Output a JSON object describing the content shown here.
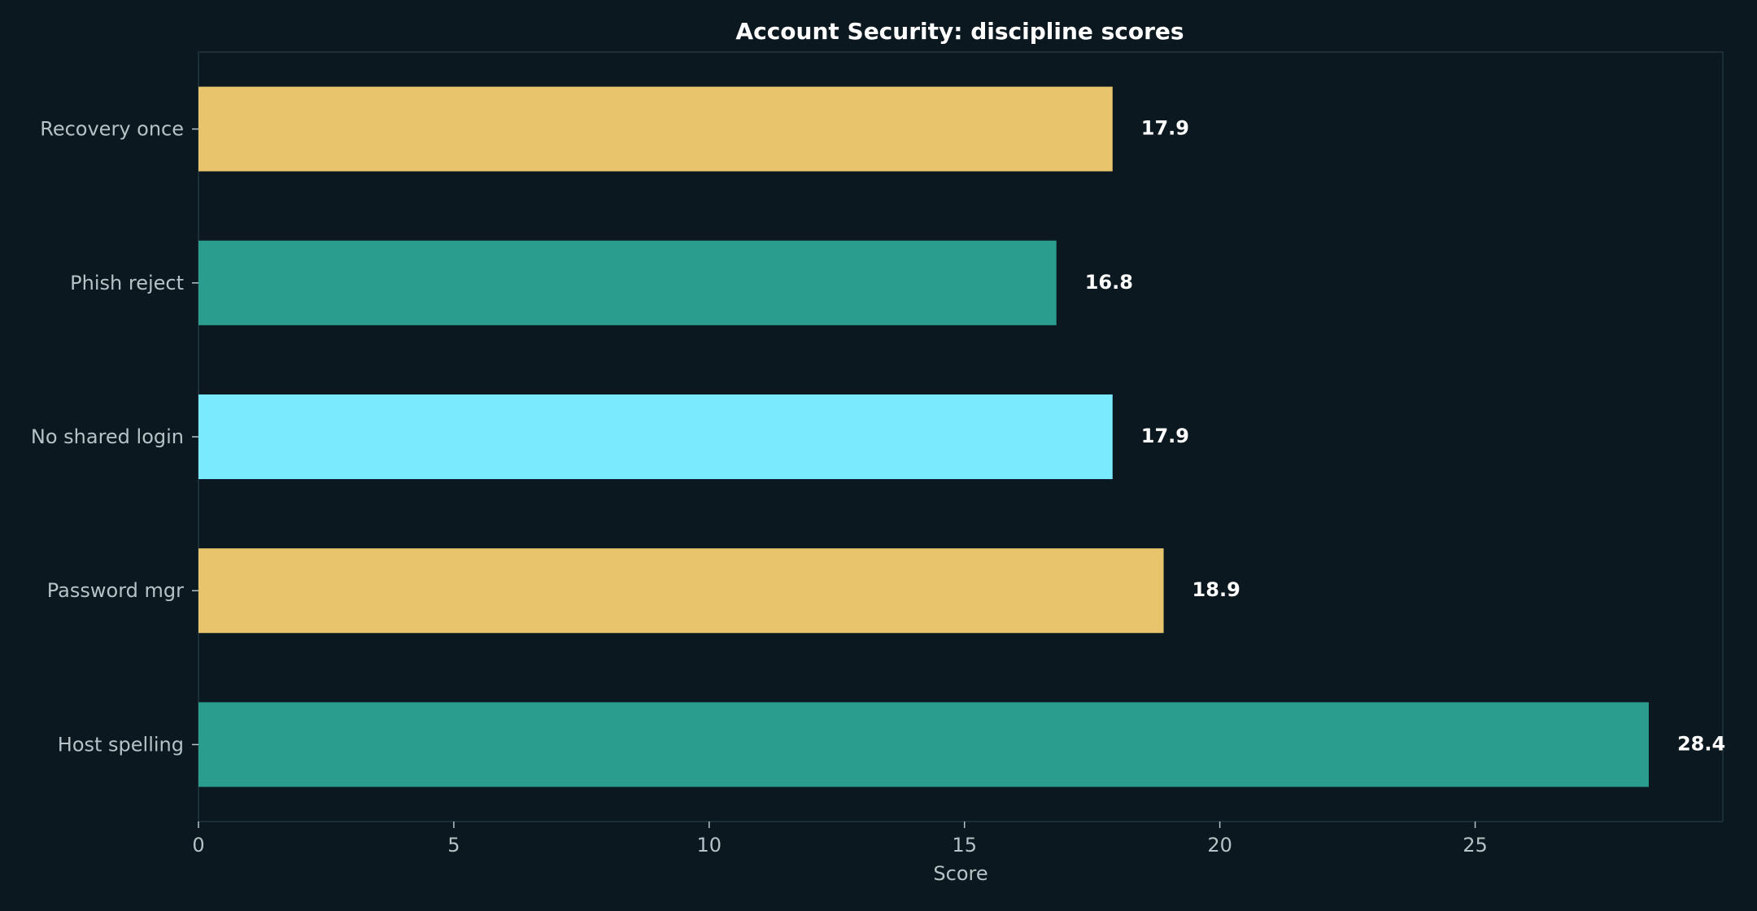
{
  "chart_data": {
    "type": "bar",
    "orientation": "horizontal",
    "title": "Account Security: discipline scores",
    "xlabel": "Score",
    "ylabel": "",
    "categories": [
      "Recovery once",
      "Phish reject",
      "No shared login",
      "Password mgr",
      "Host spelling"
    ],
    "values": [
      17.9,
      16.8,
      17.9,
      18.9,
      28.4
    ],
    "value_labels": [
      "17.9",
      "16.8",
      "17.9",
      "18.9",
      "28.4"
    ],
    "bar_colors": [
      "#e8c46c",
      "#2a9d8f",
      "#7aebff",
      "#e8c46c",
      "#2a9d8f"
    ],
    "xlim": [
      0,
      29.85
    ],
    "xticks": [
      0,
      5,
      10,
      15,
      20,
      25
    ],
    "xtick_labels": [
      "0",
      "5",
      "10",
      "15",
      "20",
      "25"
    ],
    "grid": false,
    "colors": {
      "background": "#0b181f",
      "frame": "#223540",
      "title": "#ffffff",
      "tick_text": "#b4c4c6",
      "value_text": "#ffffff"
    }
  }
}
